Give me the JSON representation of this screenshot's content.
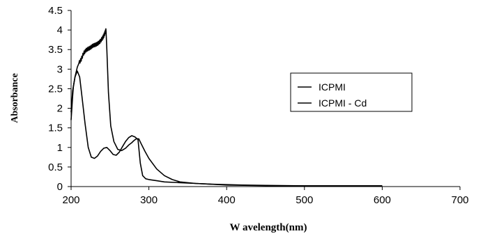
{
  "chart_data": {
    "type": "line",
    "xlabel": "W avelength(nm)",
    "ylabel": "Absorbance",
    "xlim": [
      200,
      700
    ],
    "ylim": [
      0,
      4.5
    ],
    "xticks": [
      "200",
      "300",
      "400",
      "500",
      "600",
      "700"
    ],
    "yticks": [
      "0",
      "0.5",
      "1",
      "1.5",
      "2",
      "2.5",
      "3",
      "3.5",
      "4",
      "4.5"
    ],
    "grid": false,
    "legend_position": "right",
    "series": [
      {
        "name": "ICPMI",
        "color": "#000000",
        "x": [
          200,
          202,
          205,
          208,
          211,
          214,
          218,
          222,
          226,
          230,
          234,
          238,
          242,
          246,
          250,
          254,
          258,
          262,
          266,
          270,
          274,
          278,
          282,
          286,
          289,
          292,
          296,
          300,
          310,
          320,
          340,
          360,
          380,
          400,
          420,
          450,
          500,
          550,
          600
        ],
        "y": [
          1.9,
          2.45,
          2.8,
          2.95,
          2.8,
          2.3,
          1.6,
          1.0,
          0.75,
          0.72,
          0.78,
          0.9,
          0.98,
          1.0,
          0.92,
          0.82,
          0.8,
          0.88,
          1.02,
          1.15,
          1.25,
          1.3,
          1.27,
          1.2,
          0.6,
          0.28,
          0.2,
          0.18,
          0.15,
          0.12,
          0.1,
          0.08,
          0.06,
          0.05,
          0.04,
          0.03,
          0.02,
          0.02,
          0.02
        ]
      },
      {
        "name": "ICPMI - Cd",
        "color": "#000000",
        "x": [
          200,
          201,
          202,
          203,
          205,
          208,
          210,
          213,
          216,
          219,
          222,
          225,
          228,
          231,
          234,
          237,
          240,
          242,
          244,
          245,
          246,
          248,
          251,
          255,
          260,
          265,
          270,
          274,
          278,
          281,
          284,
          287,
          290,
          295,
          300,
          310,
          320,
          330,
          340,
          360,
          380,
          400,
          430,
          460,
          500,
          550,
          600
        ],
        "y": [
          1.7,
          2.0,
          2.3,
          2.55,
          2.8,
          3.05,
          3.15,
          3.25,
          3.4,
          3.48,
          3.52,
          3.55,
          3.6,
          3.62,
          3.65,
          3.7,
          3.78,
          3.85,
          3.95,
          4.0,
          3.5,
          2.4,
          1.55,
          1.15,
          0.95,
          0.92,
          0.98,
          1.06,
          1.12,
          1.18,
          1.22,
          1.22,
          1.1,
          0.9,
          0.72,
          0.45,
          0.28,
          0.18,
          0.12,
          0.08,
          0.06,
          0.04,
          0.03,
          0.02,
          0.02,
          0.02,
          0.02
        ]
      }
    ]
  }
}
